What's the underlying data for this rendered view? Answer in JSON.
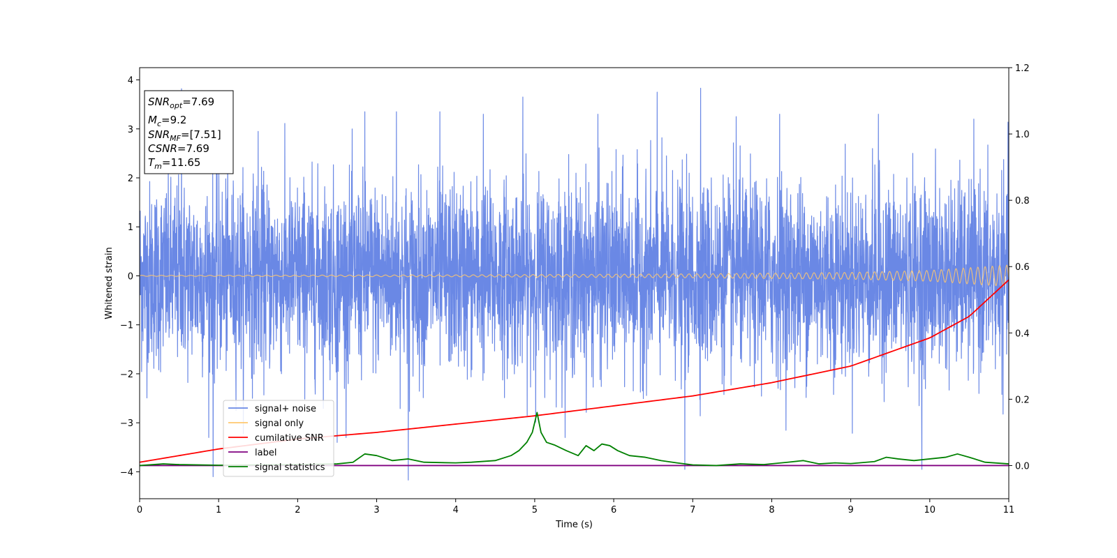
{
  "chart_data": {
    "type": "line",
    "xlabel": "Time (s)",
    "ylabel": "Whitened strain",
    "xlim": [
      0,
      11
    ],
    "ylim_left": [
      -4.55,
      4.25
    ],
    "ylim_right": [
      -0.1,
      1.2
    ],
    "x_ticks": [
      0,
      1,
      2,
      3,
      4,
      5,
      6,
      7,
      8,
      9,
      10,
      11
    ],
    "y_ticks_left": [
      -4,
      -3,
      -2,
      -1,
      0,
      1,
      2,
      3,
      4
    ],
    "y_ticks_left_labels": [
      "−4",
      "−3",
      "−2",
      "−1",
      "0",
      "1",
      "2",
      "3",
      "4"
    ],
    "y_ticks_right": [
      0.0,
      0.2,
      0.4,
      0.6,
      0.8,
      1.0,
      1.2
    ],
    "y_ticks_right_labels": [
      "0.0",
      "0.2",
      "0.4",
      "0.6",
      "0.8",
      "1.0",
      "1.2"
    ],
    "grid": false,
    "legend_position": "lower-left",
    "series": [
      {
        "name": "signal+ noise",
        "axis": "left",
        "color": "#6a88e5",
        "description_values": {
          "noise_std": 0.95,
          "peaks": [
            [
              0.53,
              3.82
            ],
            [
              1.5,
              2.95
            ],
            [
              2.85,
              3.35
            ],
            [
              3.25,
              3.35
            ],
            [
              3.8,
              3.35
            ],
            [
              4.35,
              3.3
            ],
            [
              4.85,
              3.65
            ],
            [
              5.8,
              3.3
            ],
            [
              6.55,
              3.75
            ],
            [
              7.1,
              3.83
            ],
            [
              7.55,
              3.25
            ],
            [
              8.1,
              3.3
            ],
            [
              9.35,
              3.3
            ]
          ],
          "troughs": [
            [
              0.93,
              -4.1
            ],
            [
              2.5,
              -3.4
            ],
            [
              3.4,
              -4.17
            ],
            [
              6.9,
              -3.95
            ],
            [
              9.9,
              -3.95
            ]
          ]
        }
      },
      {
        "name": "signal only",
        "axis": "left",
        "color": "#ffc86e",
        "envelope": {
          "x": [
            0,
            4,
            7,
            9,
            10,
            11
          ],
          "amp": [
            0.01,
            0.02,
            0.04,
            0.07,
            0.11,
            0.22
          ]
        }
      },
      {
        "name": "cumilative SNR",
        "axis": "right",
        "color": "#ff0000",
        "x": [
          0,
          1,
          2,
          3,
          4,
          5,
          6,
          7,
          8,
          9,
          10,
          10.5,
          11
        ],
        "values": [
          0.01,
          0.05,
          0.08,
          0.1,
          0.125,
          0.15,
          0.18,
          0.21,
          0.25,
          0.3,
          0.385,
          0.45,
          0.56
        ]
      },
      {
        "name": "label",
        "axis": "right",
        "color": "#800080",
        "x": [
          0,
          11
        ],
        "values": [
          0.0,
          0.0
        ]
      },
      {
        "name": "signal statistics",
        "axis": "right",
        "color": "#008000",
        "x": [
          0,
          0.3,
          0.5,
          1,
          1.5,
          2,
          2.5,
          2.7,
          2.85,
          3.0,
          3.2,
          3.4,
          3.6,
          4.0,
          4.2,
          4.5,
          4.7,
          4.8,
          4.9,
          4.97,
          5.03,
          5.08,
          5.15,
          5.25,
          5.4,
          5.55,
          5.65,
          5.75,
          5.85,
          5.95,
          6.05,
          6.2,
          6.4,
          6.6,
          6.8,
          7.0,
          7.3,
          7.6,
          7.9,
          8.2,
          8.4,
          8.6,
          8.8,
          9.0,
          9.3,
          9.45,
          9.6,
          9.8,
          10.0,
          10.2,
          10.35,
          10.5,
          10.7,
          11
        ],
        "values": [
          0.0,
          0.005,
          0.003,
          0.001,
          0.002,
          0.003,
          0.005,
          0.01,
          0.035,
          0.03,
          0.015,
          0.02,
          0.01,
          0.008,
          0.01,
          0.015,
          0.03,
          0.045,
          0.07,
          0.1,
          0.16,
          0.1,
          0.07,
          0.062,
          0.045,
          0.03,
          0.06,
          0.045,
          0.065,
          0.06,
          0.045,
          0.03,
          0.025,
          0.015,
          0.008,
          0.002,
          0.0,
          0.005,
          0.003,
          0.01,
          0.015,
          0.005,
          0.008,
          0.006,
          0.012,
          0.025,
          0.02,
          0.015,
          0.02,
          0.025,
          0.035,
          0.025,
          0.01,
          0.005
        ]
      }
    ],
    "annotation_box": [
      {
        "main": "SNR",
        "sub": "opt",
        "rest": "=7.69"
      },
      {
        "main": "M",
        "sub": "c",
        "rest": "=9.2"
      },
      {
        "main": "SNR",
        "sub": "MF",
        "rest": "=[7.51]"
      },
      {
        "main": "CSNR",
        "sub": "",
        "rest": "=7.69"
      },
      {
        "main": "T",
        "sub": "m",
        "rest": "=11.65"
      }
    ]
  }
}
